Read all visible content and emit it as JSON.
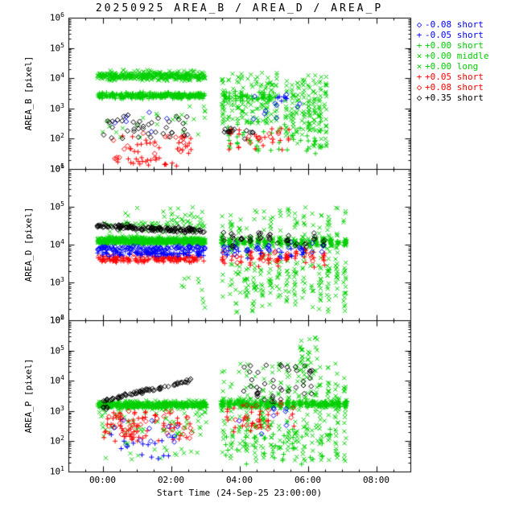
{
  "title": "20250925 AREA_B / AREA_D / AREA_P",
  "chart_data": {
    "type": "scatter",
    "title": "20250925 AREA_B / AREA_D / AREA_P",
    "yscale": "log",
    "x_axis": {
      "label": "Start Time (24-Sep-25 23:00:00)",
      "tick_labels": [
        "00:00",
        "02:00",
        "04:00",
        "06:00",
        "08:00"
      ],
      "tick_hours": [
        1,
        3,
        5,
        7,
        9
      ],
      "hours_span": 10,
      "minor_step": 0.5
    },
    "panels": [
      {
        "name": "AREA_B",
        "ylabel": "AREA_B [pixel]",
        "log_range": [
          1,
          6
        ],
        "ylim": [
          10,
          1000000
        ]
      },
      {
        "name": "AREA_D",
        "ylabel": "AREA_D [pixel]",
        "log_range": [
          2,
          6
        ],
        "ylim": [
          100,
          1000000
        ]
      },
      {
        "name": "AREA_P",
        "ylabel": "AREA_P [pixel]",
        "log_range": [
          1,
          6
        ],
        "ylim": [
          10,
          1000000
        ]
      }
    ],
    "series": {
      "b_dia": {
        "label": "-0.08 short",
        "color": "#0000ff",
        "symbol": "diamond"
      },
      "b_plus": {
        "label": "-0.05 short",
        "color": "#0000ff",
        "symbol": "plus"
      },
      "g_plus": {
        "label": "+0.00 short",
        "color": "#00cf00",
        "symbol": "plus"
      },
      "g_x_mid": {
        "label": "+0.00 middle",
        "color": "#00cf00",
        "symbol": "cross"
      },
      "g_x_long": {
        "label": "+0.00 long",
        "color": "#00cf00",
        "symbol": "cross"
      },
      "r_plus": {
        "label": "+0.05 short",
        "color": "#ff0000",
        "symbol": "plus"
      },
      "r_dia": {
        "label": "+0.08 short",
        "color": "#ff0000",
        "symbol": "diamond"
      },
      "k_dia": {
        "label": "+0.35 short",
        "color": "#000000",
        "symbol": "diamond"
      }
    },
    "legend_order": [
      "b_dia",
      "b_plus",
      "g_plus",
      "g_x_mid",
      "g_x_long",
      "r_plus",
      "r_dia",
      "k_dia"
    ],
    "clusters": [
      {
        "p": 0,
        "s": "g_x_mid",
        "n": 260,
        "t": [
          0.85,
          4.0
        ],
        "ly": [
          3.92,
          4.22
        ]
      },
      {
        "p": 0,
        "s": "g_x_long",
        "n": 120,
        "t": [
          0.85,
          4.0
        ],
        "ly": [
          3.85,
          4.3
        ]
      },
      {
        "p": 0,
        "s": "g_plus",
        "n": 300,
        "t": [
          0.85,
          4.0
        ],
        "ly": [
          3.3,
          3.55
        ]
      },
      {
        "p": 0,
        "s": "g_x_mid",
        "n": 25,
        "t": [
          1.0,
          4.0
        ],
        "ly": [
          2.0,
          3.1
        ]
      },
      {
        "p": 0,
        "s": "g_plus",
        "n": 60,
        "t": [
          4.5,
          6.1
        ],
        "ly": [
          3.2,
          3.6
        ],
        "cols": 10
      },
      {
        "p": 0,
        "s": "g_x_mid",
        "n": 150,
        "t": [
          4.45,
          6.15
        ],
        "ly": [
          2.5,
          4.2
        ],
        "cols": 12
      },
      {
        "p": 0,
        "s": "g_x_long",
        "n": 100,
        "t": [
          6.3,
          7.6
        ],
        "ly": [
          1.7,
          3.9
        ],
        "cols": 8
      },
      {
        "p": 0,
        "s": "g_x_mid",
        "n": 80,
        "t": [
          6.3,
          7.6
        ],
        "ly": [
          2.2,
          4.1
        ],
        "cols": 8
      },
      {
        "p": 0,
        "s": "g_plus",
        "n": 50,
        "t": [
          4.6,
          7.5
        ],
        "ly": [
          1.5,
          2.6
        ],
        "cols": 14
      },
      {
        "p": 1,
        "s": "g_x_mid",
        "n": 300,
        "t": [
          0.85,
          4.0
        ],
        "ly": [
          4.02,
          4.2
        ]
      },
      {
        "p": 1,
        "s": "g_x_long",
        "n": 150,
        "t": [
          0.85,
          4.0
        ],
        "ly": [
          3.98,
          4.25
        ]
      },
      {
        "p": 1,
        "s": "g_plus",
        "n": 250,
        "t": [
          0.85,
          4.0
        ],
        "ly": [
          4.0,
          4.12
        ]
      },
      {
        "p": 1,
        "s": "g_x_mid",
        "n": 60,
        "t": [
          1.0,
          4.0
        ],
        "ly": [
          4.25,
          4.85
        ]
      },
      {
        "p": 1,
        "s": "g_x_long",
        "n": 25,
        "t": [
          2.0,
          4.0
        ],
        "ly": [
          4.3,
          5.0
        ]
      },
      {
        "p": 1,
        "s": "g_x_long",
        "n": 10,
        "t": [
          3.3,
          4.05
        ],
        "ly": [
          2.3,
          3.3
        ]
      },
      {
        "p": 1,
        "s": "g_x_mid",
        "n": 180,
        "t": [
          4.4,
          8.2
        ],
        "ly": [
          3.9,
          4.25
        ],
        "cols": 18
      },
      {
        "p": 1,
        "s": "g_plus",
        "n": 120,
        "t": [
          4.4,
          8.2
        ],
        "ly": [
          3.95,
          4.15
        ],
        "cols": 18
      },
      {
        "p": 1,
        "s": "g_x_long",
        "n": 200,
        "t": [
          4.4,
          8.2
        ],
        "ly": [
          2.6,
          5.0
        ],
        "cols": 16
      },
      {
        "p": 1,
        "s": "g_x_mid",
        "n": 120,
        "t": [
          4.8,
          8.2
        ],
        "ly": [
          2.2,
          3.6
        ],
        "cols": 14
      },
      {
        "p": 2,
        "s": "g_plus",
        "n": 350,
        "t": [
          0.85,
          4.05
        ],
        "ly": [
          3.08,
          3.32
        ]
      },
      {
        "p": 2,
        "s": "g_x_mid",
        "n": 150,
        "t": [
          0.85,
          4.05
        ],
        "ly": [
          3.0,
          3.4
        ]
      },
      {
        "p": 2,
        "s": "g_x_mid",
        "n": 60,
        "t": [
          0.9,
          4.05
        ],
        "ly": [
          2.2,
          3.0
        ]
      },
      {
        "p": 2,
        "s": "g_x_long",
        "n": 20,
        "t": [
          1.0,
          4.0
        ],
        "ly": [
          1.4,
          2.3
        ]
      },
      {
        "p": 2,
        "s": "g_plus",
        "n": 250,
        "t": [
          4.4,
          8.2
        ],
        "ly": [
          3.1,
          3.35
        ],
        "cols": 20
      },
      {
        "p": 2,
        "s": "g_x_mid",
        "n": 120,
        "t": [
          4.4,
          8.2
        ],
        "ly": [
          3.0,
          3.45
        ],
        "cols": 18
      },
      {
        "p": 2,
        "s": "g_x_long",
        "n": 250,
        "t": [
          4.4,
          8.2
        ],
        "ly": [
          1.3,
          4.6
        ],
        "cols": 16
      },
      {
        "p": 2,
        "s": "g_x_mid",
        "n": 100,
        "t": [
          4.4,
          8.2
        ],
        "ly": [
          1.8,
          4.2
        ],
        "cols": 14
      },
      {
        "p": 2,
        "s": "g_x_long",
        "n": 30,
        "t": [
          6.7,
          7.35
        ],
        "ly": [
          4.3,
          5.5
        ],
        "cols": 3
      },
      {
        "p": 2,
        "s": "g_plus",
        "n": 40,
        "t": [
          4.5,
          7.8
        ],
        "ly": [
          1.2,
          2.4
        ],
        "cols": 12
      },
      {
        "p": 0,
        "s": "r_plus",
        "n": 45,
        "t": [
          1.4,
          3.6
        ],
        "ly": [
          1.1,
          2.1
        ]
      },
      {
        "p": 0,
        "s": "r_dia",
        "n": 20,
        "t": [
          1.2,
          3.5
        ],
        "ly": [
          1.3,
          2.2
        ]
      },
      {
        "p": 0,
        "s": "r_plus",
        "n": 25,
        "t": [
          4.6,
          6.6
        ],
        "ly": [
          1.6,
          2.35
        ],
        "cols": 8
      },
      {
        "p": 0,
        "s": "r_dia",
        "n": 12,
        "t": [
          4.6,
          6.3
        ],
        "ly": [
          1.7,
          2.3
        ],
        "cols": 6
      },
      {
        "p": 1,
        "s": "r_plus",
        "n": 120,
        "t": [
          0.85,
          4.0
        ],
        "ly": [
          3.5,
          3.72
        ]
      },
      {
        "p": 1,
        "s": "r_dia",
        "n": 40,
        "t": [
          0.85,
          4.0
        ],
        "ly": [
          3.55,
          3.78
        ]
      },
      {
        "p": 1,
        "s": "r_plus",
        "n": 60,
        "t": [
          4.4,
          7.6
        ],
        "ly": [
          3.4,
          3.9
        ],
        "cols": 12
      },
      {
        "p": 1,
        "s": "r_dia",
        "n": 25,
        "t": [
          4.4,
          7.3
        ],
        "ly": [
          3.45,
          3.95
        ],
        "cols": 8
      },
      {
        "p": 2,
        "s": "r_plus",
        "n": 70,
        "t": [
          1.0,
          3.6
        ],
        "ly": [
          2.0,
          3.0
        ]
      },
      {
        "p": 2,
        "s": "r_dia",
        "n": 30,
        "t": [
          1.0,
          3.6
        ],
        "ly": [
          2.1,
          3.0
        ]
      },
      {
        "p": 2,
        "s": "r_plus",
        "n": 30,
        "t": [
          4.5,
          6.7
        ],
        "ly": [
          2.3,
          3.2
        ],
        "cols": 9
      },
      {
        "p": 2,
        "s": "r_dia",
        "n": 15,
        "t": [
          4.7,
          6.7
        ],
        "ly": [
          2.4,
          3.3
        ],
        "cols": 6
      },
      {
        "p": 0,
        "s": "b_dia",
        "n": 6,
        "t": [
          1.2,
          3.2
        ],
        "ly": [
          2.2,
          3.1
        ]
      },
      {
        "p": 0,
        "s": "b_dia",
        "n": 10,
        "t": [
          4.6,
          6.9
        ],
        "ly": [
          2.6,
          3.5
        ],
        "cols": 7
      },
      {
        "p": 0,
        "s": "b_plus",
        "n": 6,
        "t": [
          5.9,
          6.4
        ],
        "ly": [
          3.1,
          3.6
        ]
      },
      {
        "p": 1,
        "s": "b_dia",
        "n": 120,
        "t": [
          0.85,
          4.0
        ],
        "ly": [
          3.82,
          3.98
        ]
      },
      {
        "p": 1,
        "s": "b_plus",
        "n": 90,
        "t": [
          0.85,
          4.0
        ],
        "ly": [
          3.68,
          3.85
        ]
      },
      {
        "p": 1,
        "s": "b_dia",
        "n": 35,
        "t": [
          4.4,
          7.6
        ],
        "ly": [
          3.7,
          4.1
        ],
        "cols": 10
      },
      {
        "p": 1,
        "s": "b_plus",
        "n": 20,
        "t": [
          4.5,
          7.0
        ],
        "ly": [
          3.6,
          4.0
        ],
        "cols": 8
      },
      {
        "p": 2,
        "s": "b_plus",
        "n": 15,
        "t": [
          1.0,
          3.3
        ],
        "ly": [
          1.4,
          2.5
        ]
      },
      {
        "p": 2,
        "s": "b_dia",
        "n": 12,
        "t": [
          1.1,
          3.3
        ],
        "ly": [
          1.8,
          2.7
        ]
      },
      {
        "p": 2,
        "s": "b_dia",
        "n": 8,
        "t": [
          4.8,
          6.9
        ],
        "ly": [
          2.2,
          3.2
        ],
        "cols": 6
      },
      {
        "p": 0,
        "s": "k_dia",
        "n": 40,
        "t": [
          1.0,
          3.6
        ],
        "ly": [
          1.95,
          2.8
        ]
      },
      {
        "p": 0,
        "s": "k_dia",
        "n": 14,
        "t": [
          4.5,
          5.4
        ],
        "ly": [
          1.9,
          2.5
        ]
      },
      {
        "p": 1,
        "s": "k_dia",
        "n": 150,
        "t": [
          0.85,
          4.0
        ],
        "ly": [
          4.42,
          4.58
        ],
        "lye": [
          4.28,
          4.44
        ]
      },
      {
        "p": 1,
        "s": "k_dia",
        "n": 50,
        "t": [
          4.4,
          7.6
        ],
        "ly": [
          3.9,
          4.35
        ],
        "cols": 12
      },
      {
        "p": 2,
        "s": "k_dia",
        "n": 6,
        "t": [
          0.9,
          1.15
        ],
        "ly": [
          3.0,
          3.2
        ]
      },
      {
        "p": 2,
        "s": "k_dia",
        "n": 70,
        "t": [
          1.0,
          3.6
        ],
        "ly": [
          3.25,
          3.4
        ],
        "lye": [
          3.95,
          4.1
        ]
      },
      {
        "p": 2,
        "s": "k_dia",
        "n": 45,
        "t": [
          5.0,
          7.2
        ],
        "ly": [
          3.3,
          4.55
        ],
        "cols": 10
      }
    ]
  }
}
